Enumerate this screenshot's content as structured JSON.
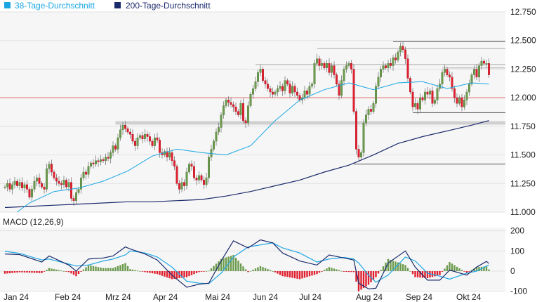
{
  "legend": [
    {
      "label": "38-Tage-Durchschnitt",
      "color": "#1ba6e3"
    },
    {
      "label": "200-Tage-Durchschnitt",
      "color": "#1b2a6b"
    }
  ],
  "colors": {
    "up": "#6b9a4c",
    "down": "#e0202f",
    "ref_line": "#e07070",
    "level": "#555555",
    "band": "#d0d0d0"
  },
  "chart_data": [
    {
      "type": "candlestick",
      "y_ticks": [
        "12.750",
        "12.500",
        "12.250",
        "12.000",
        "11.750",
        "11.500",
        "11.250",
        "11.000"
      ],
      "ylim": [
        11.0,
        12.75
      ],
      "x_ticks": [
        "Jan 24",
        "Feb 24",
        "Mrz 24",
        "Apr 24",
        "Mai 24",
        "Jun 24",
        "Jul 24",
        "Aug 24",
        "Sep 24",
        "Okt 24"
      ],
      "grid": true,
      "legend_position": "top-left",
      "close": [
        11.22,
        11.25,
        11.2,
        11.24,
        11.27,
        11.23,
        11.26,
        11.21,
        11.24,
        11.2,
        11.13,
        11.2,
        11.27,
        11.3,
        11.25,
        11.22,
        11.2,
        11.38,
        11.42,
        11.35,
        11.3,
        11.27,
        11.25,
        11.24,
        11.28,
        11.22,
        11.26,
        11.12,
        11.1,
        11.17,
        11.2,
        11.3,
        11.35,
        11.33,
        11.4,
        11.43,
        11.42,
        11.45,
        11.44,
        11.46,
        11.45,
        11.48,
        11.47,
        11.52,
        11.58,
        11.55,
        11.65,
        11.72,
        11.76,
        11.73,
        11.7,
        11.68,
        11.62,
        11.58,
        11.65,
        11.67,
        11.64,
        11.68,
        11.66,
        11.62,
        11.58,
        11.65,
        11.63,
        11.52,
        11.5,
        11.53,
        11.48,
        11.52,
        11.45,
        11.4,
        11.25,
        11.2,
        11.26,
        11.23,
        11.35,
        11.42,
        11.4,
        11.3,
        11.28,
        11.32,
        11.28,
        11.24,
        11.3,
        11.48,
        11.55,
        11.62,
        11.7,
        11.74,
        11.85,
        11.93,
        11.98,
        11.96,
        11.94,
        11.92,
        11.88,
        11.85,
        11.95,
        11.8,
        11.78,
        11.93,
        12.03,
        12.08,
        12.14,
        12.22,
        12.25,
        12.15,
        12.12,
        12.08,
        12.05,
        12.03,
        12.05,
        12.08,
        12.1,
        12.06,
        12.15,
        12.12,
        12.04,
        12.1,
        12.05,
        12.02,
        11.98,
        12.0,
        12.06,
        12.03,
        12.1,
        12.12,
        12.3,
        12.34,
        12.28,
        12.3,
        12.26,
        12.3,
        12.22,
        12.28,
        12.2,
        12.12,
        12.02,
        12.15,
        12.25,
        12.28,
        12.3,
        12.25,
        11.88,
        11.55,
        11.48,
        11.52,
        11.78,
        11.85,
        11.9,
        11.88,
        11.95,
        12.1,
        12.18,
        12.25,
        12.28,
        12.26,
        12.3,
        12.28,
        12.35,
        12.33,
        12.4,
        12.45,
        12.42,
        12.34,
        12.17,
        12.05,
        11.92,
        11.95,
        11.9,
        12.0,
        11.98,
        12.05,
        12.03,
        12.06,
        11.95,
        11.98,
        12.08,
        12.12,
        12.22,
        12.25,
        12.2,
        12.18,
        12.08,
        12.0,
        11.95,
        12.0,
        11.92,
        11.98,
        12.05,
        12.12,
        12.2,
        12.25,
        12.18,
        12.28,
        12.32,
        12.3,
        12.3,
        12.2
      ],
      "ma38": [
        [
          5,
          11.0
        ],
        [
          10,
          11.08
        ],
        [
          20,
          11.18
        ],
        [
          30,
          11.21
        ],
        [
          40,
          11.27
        ],
        [
          50,
          11.36
        ],
        [
          60,
          11.49
        ],
        [
          70,
          11.55
        ],
        [
          80,
          11.52
        ],
        [
          90,
          11.5
        ],
        [
          100,
          11.58
        ],
        [
          110,
          11.8
        ],
        [
          120,
          11.98
        ],
        [
          130,
          12.07
        ],
        [
          140,
          12.13
        ],
        [
          150,
          12.07
        ],
        [
          160,
          12.13
        ],
        [
          170,
          12.14
        ],
        [
          180,
          12.08
        ],
        [
          190,
          12.13
        ],
        [
          197,
          12.12
        ]
      ],
      "ma200": [
        [
          0,
          11.04
        ],
        [
          10,
          11.05
        ],
        [
          20,
          11.06
        ],
        [
          30,
          11.07
        ],
        [
          40,
          11.08
        ],
        [
          50,
          11.09
        ],
        [
          60,
          11.09
        ],
        [
          70,
          11.1
        ],
        [
          80,
          11.11
        ],
        [
          90,
          11.14
        ],
        [
          100,
          11.18
        ],
        [
          110,
          11.23
        ],
        [
          120,
          11.28
        ],
        [
          130,
          11.35
        ],
        [
          140,
          11.41
        ],
        [
          150,
          11.5
        ],
        [
          160,
          11.6
        ],
        [
          170,
          11.66
        ],
        [
          180,
          11.71
        ],
        [
          190,
          11.76
        ],
        [
          197,
          11.8
        ]
      ],
      "levels": [
        {
          "value": 12.49,
          "from": 158,
          "style": "dark"
        },
        {
          "value": 12.43,
          "from": 127,
          "style": "gray"
        },
        {
          "value": 12.29,
          "from": 102,
          "style": "gray"
        },
        {
          "value": 12.26,
          "from": 178,
          "style": "gray"
        },
        {
          "value": 12.0,
          "from": 0,
          "style": "ref"
        },
        {
          "value": 11.87,
          "from": 166,
          "style": "dark"
        },
        {
          "value": 11.78,
          "from": 45,
          "style": "band"
        },
        {
          "value": 11.42,
          "from": 142,
          "style": "dark"
        }
      ]
    },
    {
      "type": "macd",
      "title": "MACD (12,26,9)",
      "y_ticks": [
        "200",
        "100",
        "0",
        "-100"
      ],
      "ylim": [
        -100,
        200
      ],
      "samples": [
        [
          0,
          85,
          98
        ],
        [
          6,
          82,
          88
        ],
        [
          15,
          45,
          55
        ],
        [
          18,
          75,
          60
        ],
        [
          26,
          30,
          35
        ],
        [
          29,
          0,
          25
        ],
        [
          34,
          60,
          30
        ],
        [
          40,
          65,
          50
        ],
        [
          44,
          75,
          60
        ],
        [
          49,
          120,
          80
        ],
        [
          51,
          110,
          100
        ],
        [
          57,
          85,
          90
        ],
        [
          62,
          55,
          70
        ],
        [
          68,
          -20,
          20
        ],
        [
          74,
          -80,
          -50
        ],
        [
          79,
          -65,
          -60
        ],
        [
          83,
          -60,
          -62
        ],
        [
          88,
          50,
          -10
        ],
        [
          93,
          150,
          70
        ],
        [
          99,
          115,
          120
        ],
        [
          104,
          155,
          130
        ],
        [
          109,
          140,
          140
        ],
        [
          113,
          90,
          115
        ],
        [
          120,
          50,
          90
        ],
        [
          127,
          30,
          45
        ],
        [
          132,
          80,
          60
        ],
        [
          138,
          65,
          68
        ],
        [
          142,
          55,
          60
        ],
        [
          144,
          -60,
          40
        ],
        [
          148,
          -88,
          -20
        ],
        [
          151,
          -85,
          -55
        ],
        [
          156,
          40,
          -20
        ],
        [
          163,
          100,
          70
        ],
        [
          167,
          20,
          50
        ],
        [
          172,
          -45,
          -10
        ],
        [
          177,
          -45,
          -25
        ],
        [
          181,
          5,
          -40
        ],
        [
          188,
          -20,
          -10
        ],
        [
          192,
          20,
          0
        ],
        [
          196,
          48,
          25
        ],
        [
          197,
          38,
          30
        ]
      ]
    }
  ]
}
